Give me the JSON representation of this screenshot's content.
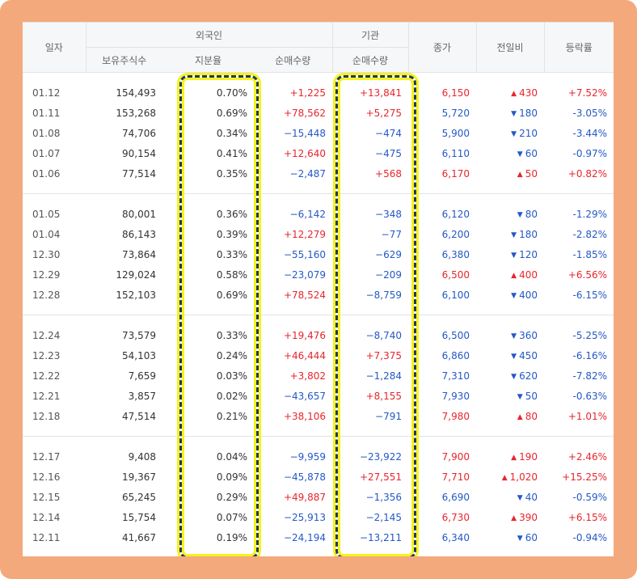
{
  "header": {
    "date": "일자",
    "foreign": "외국인",
    "institution": "기관",
    "close": "종가",
    "change": "전일비",
    "rate": "등락률",
    "holdings": "보유주식수",
    "share": "지분율",
    "foreign_net": "순매수량",
    "inst_net": "순매수량"
  },
  "groups": [
    {
      "rows": [
        {
          "date": "01.12",
          "holdings": "154,493",
          "share": "0.70%",
          "foreign_net": "+1,225",
          "inst_net": "+13,841",
          "close": "6,150",
          "change": "430",
          "change_dir": "up",
          "rate": "+7.52%"
        },
        {
          "date": "01.11",
          "holdings": "153,268",
          "share": "0.69%",
          "foreign_net": "+78,562",
          "inst_net": "+5,275",
          "close": "5,720",
          "change": "180",
          "change_dir": "down",
          "rate": "-3.05%"
        },
        {
          "date": "01.08",
          "holdings": "74,706",
          "share": "0.34%",
          "foreign_net": "−15,448",
          "inst_net": "−474",
          "close": "5,900",
          "change": "210",
          "change_dir": "down",
          "rate": "-3.44%"
        },
        {
          "date": "01.07",
          "holdings": "90,154",
          "share": "0.41%",
          "foreign_net": "+12,640",
          "inst_net": "−475",
          "close": "6,110",
          "change": "60",
          "change_dir": "down",
          "rate": "-0.97%"
        },
        {
          "date": "01.06",
          "holdings": "77,514",
          "share": "0.35%",
          "foreign_net": "−2,487",
          "inst_net": "+568",
          "close": "6,170",
          "change": "50",
          "change_dir": "up",
          "rate": "+0.82%"
        }
      ]
    },
    {
      "rows": [
        {
          "date": "01.05",
          "holdings": "80,001",
          "share": "0.36%",
          "foreign_net": "−6,142",
          "inst_net": "−348",
          "close": "6,120",
          "change": "80",
          "change_dir": "down",
          "rate": "-1.29%"
        },
        {
          "date": "01.04",
          "holdings": "86,143",
          "share": "0.39%",
          "foreign_net": "+12,279",
          "inst_net": "−77",
          "close": "6,200",
          "change": "180",
          "change_dir": "down",
          "rate": "-2.82%"
        },
        {
          "date": "12.30",
          "holdings": "73,864",
          "share": "0.33%",
          "foreign_net": "−55,160",
          "inst_net": "−629",
          "close": "6,380",
          "change": "120",
          "change_dir": "down",
          "rate": "-1.85%"
        },
        {
          "date": "12.29",
          "holdings": "129,024",
          "share": "0.58%",
          "foreign_net": "−23,079",
          "inst_net": "−209",
          "close": "6,500",
          "change": "400",
          "change_dir": "up",
          "rate": "+6.56%"
        },
        {
          "date": "12.28",
          "holdings": "152,103",
          "share": "0.69%",
          "foreign_net": "+78,524",
          "inst_net": "−8,759",
          "close": "6,100",
          "change": "400",
          "change_dir": "down",
          "rate": "-6.15%"
        }
      ]
    },
    {
      "rows": [
        {
          "date": "12.24",
          "holdings": "73,579",
          "share": "0.33%",
          "foreign_net": "+19,476",
          "inst_net": "−8,740",
          "close": "6,500",
          "change": "360",
          "change_dir": "down",
          "rate": "-5.25%"
        },
        {
          "date": "12.23",
          "holdings": "54,103",
          "share": "0.24%",
          "foreign_net": "+46,444",
          "inst_net": "+7,375",
          "close": "6,860",
          "change": "450",
          "change_dir": "down",
          "rate": "-6.16%"
        },
        {
          "date": "12.22",
          "holdings": "7,659",
          "share": "0.03%",
          "foreign_net": "+3,802",
          "inst_net": "−1,284",
          "close": "7,310",
          "change": "620",
          "change_dir": "down",
          "rate": "-7.82%"
        },
        {
          "date": "12.21",
          "holdings": "3,857",
          "share": "0.02%",
          "foreign_net": "−43,657",
          "inst_net": "+8,155",
          "close": "7,930",
          "change": "50",
          "change_dir": "down",
          "rate": "-0.63%"
        },
        {
          "date": "12.18",
          "holdings": "47,514",
          "share": "0.21%",
          "foreign_net": "+38,106",
          "inst_net": "−791",
          "close": "7,980",
          "change": "80",
          "change_dir": "up",
          "rate": "+1.01%"
        }
      ]
    },
    {
      "rows": [
        {
          "date": "12.17",
          "holdings": "9,408",
          "share": "0.04%",
          "foreign_net": "−9,959",
          "inst_net": "−23,922",
          "close": "7,900",
          "change": "190",
          "change_dir": "up",
          "rate": "+2.46%"
        },
        {
          "date": "12.16",
          "holdings": "19,367",
          "share": "0.09%",
          "foreign_net": "−45,878",
          "inst_net": "+27,551",
          "close": "7,710",
          "change": "1,020",
          "change_dir": "up",
          "rate": "+15.25%"
        },
        {
          "date": "12.15",
          "holdings": "65,245",
          "share": "0.29%",
          "foreign_net": "+49,887",
          "inst_net": "−1,356",
          "close": "6,690",
          "change": "40",
          "change_dir": "down",
          "rate": "-0.59%"
        },
        {
          "date": "12.14",
          "holdings": "15,754",
          "share": "0.07%",
          "foreign_net": "−25,913",
          "inst_net": "−2,145",
          "close": "6,730",
          "change": "390",
          "change_dir": "up",
          "rate": "+6.15%"
        },
        {
          "date": "12.11",
          "holdings": "41,667",
          "share": "0.19%",
          "foreign_net": "−24,194",
          "inst_net": "−13,211",
          "close": "6,340",
          "change": "60",
          "change_dir": "down",
          "rate": "-0.94%"
        }
      ]
    }
  ],
  "colors": {
    "up": "#e8252c",
    "down": "#2458c6",
    "frame": "#f3a97c",
    "highlight": "#f7f21b"
  },
  "icons": {
    "up": "triangle-up-icon",
    "down": "triangle-down-icon"
  }
}
